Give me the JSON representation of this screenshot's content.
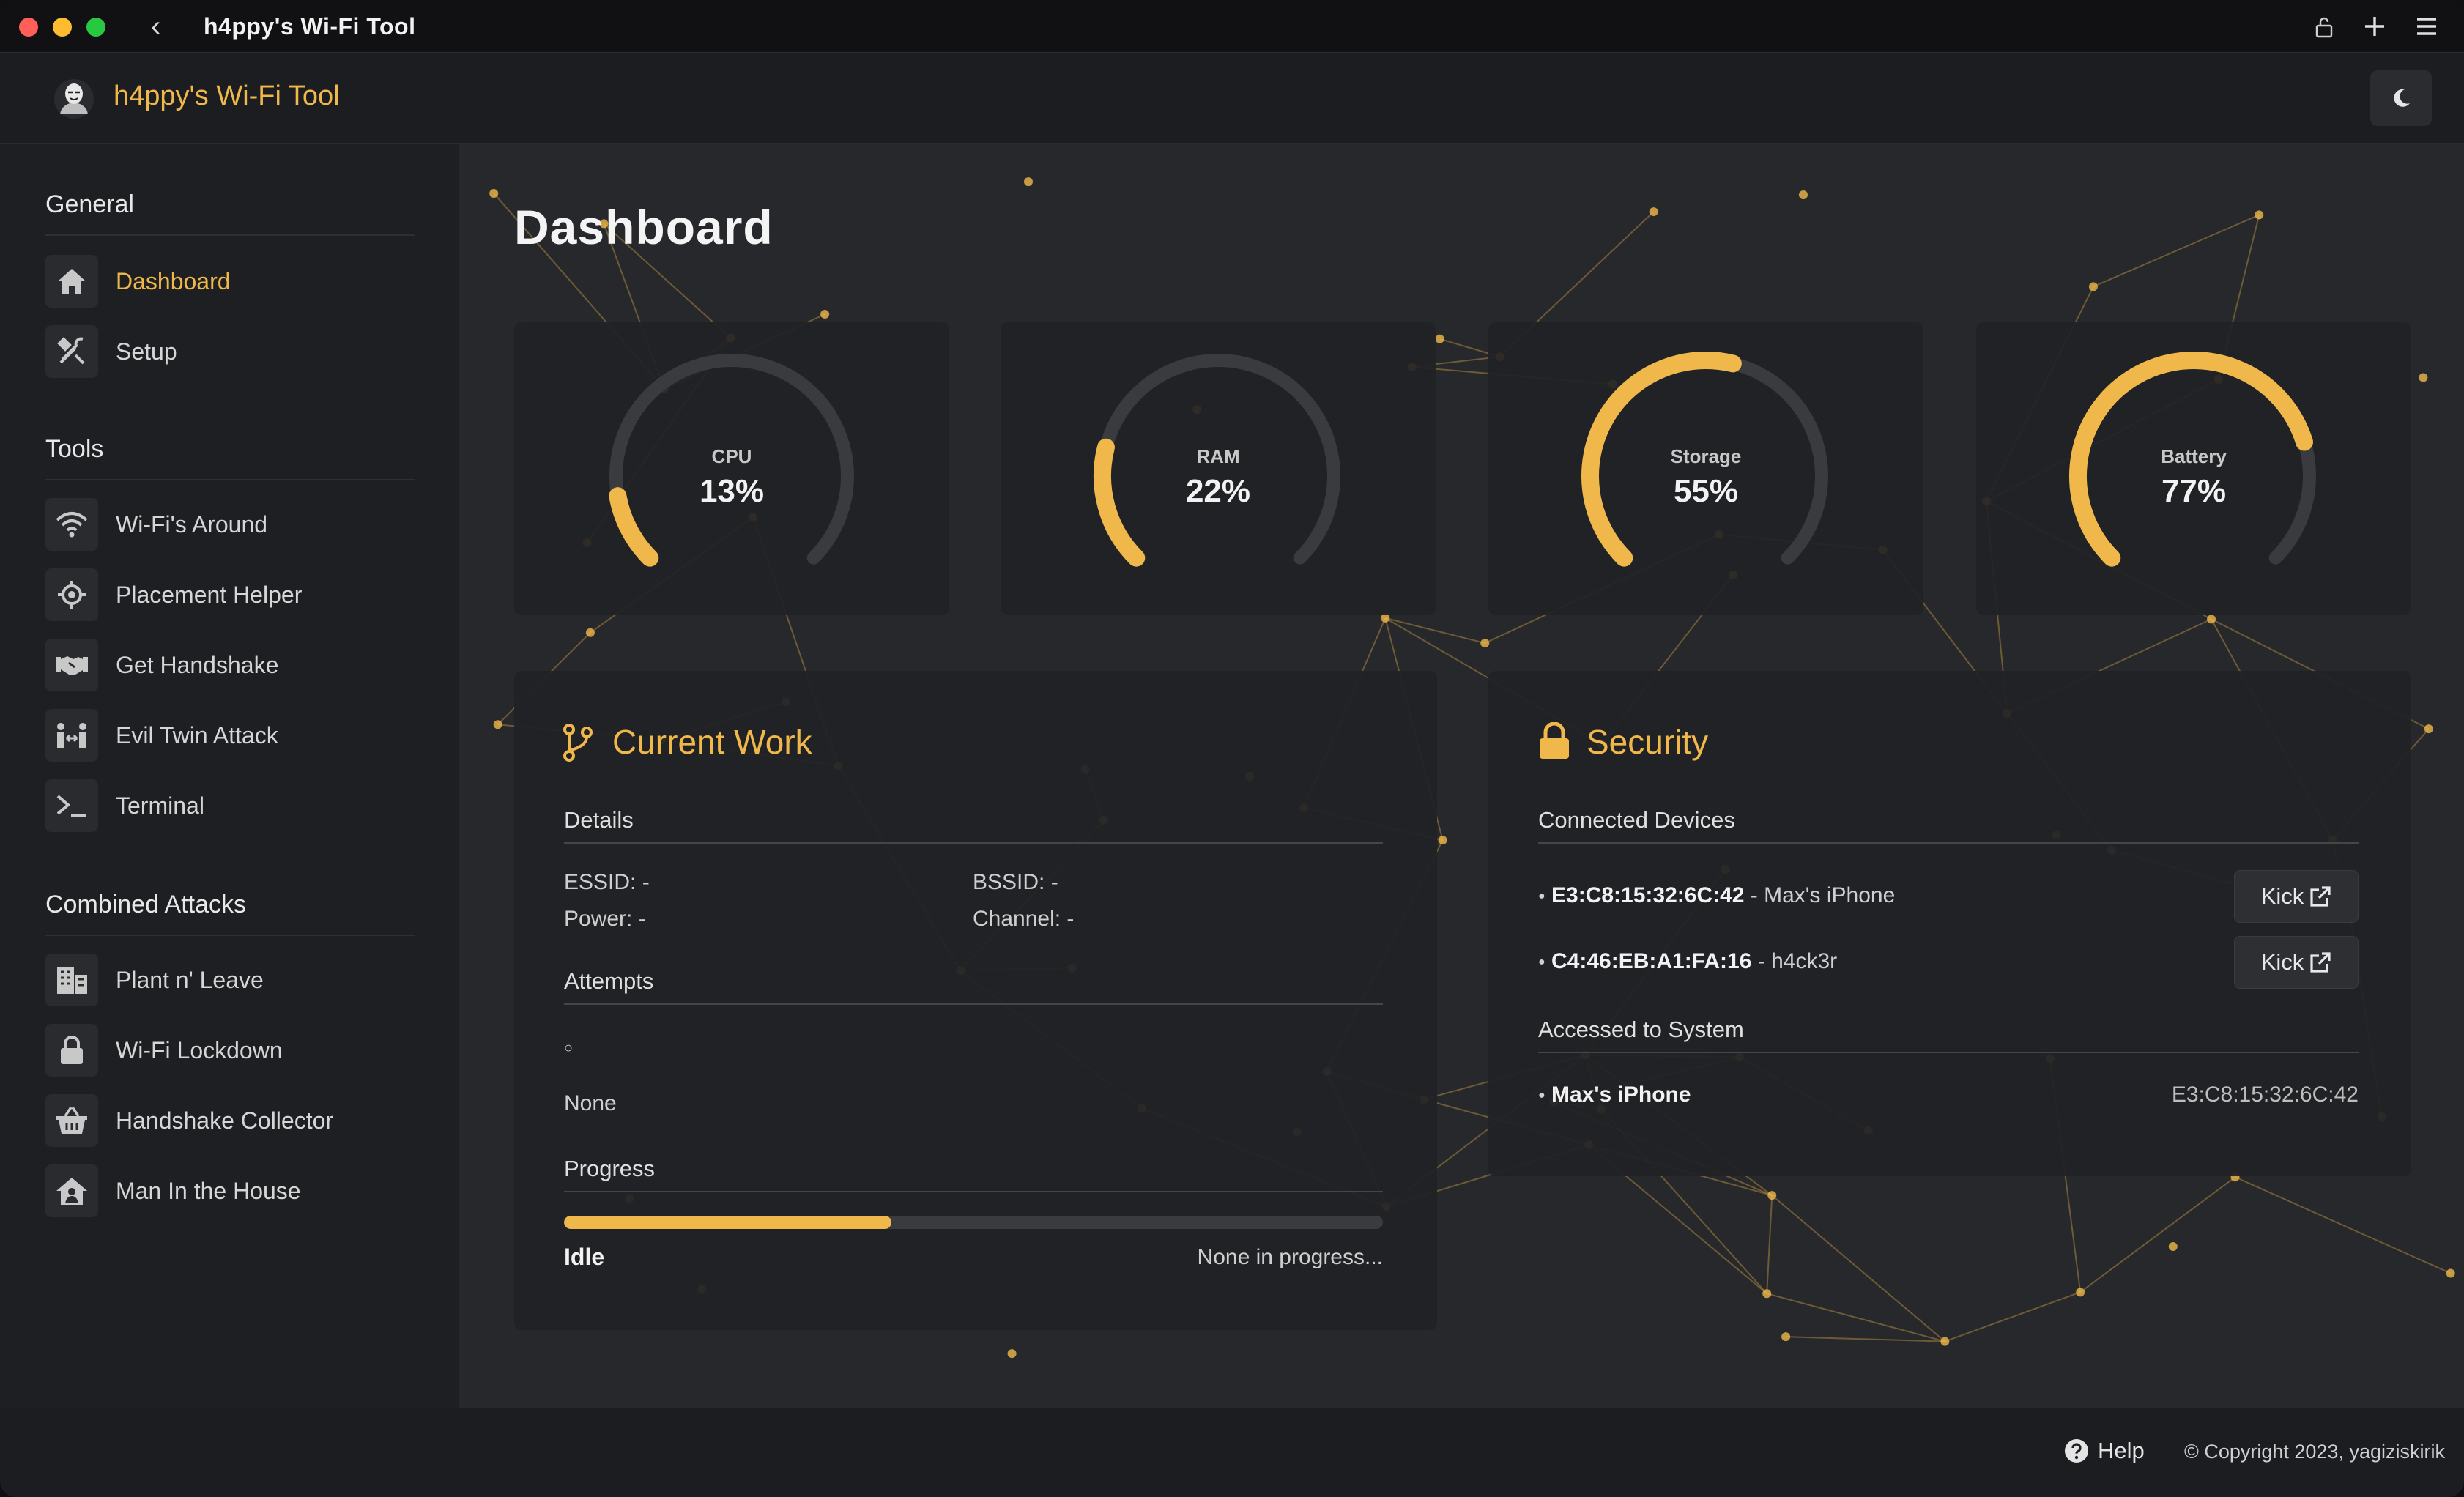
{
  "titlebar": {
    "back": "‹",
    "title": "h4ppy's Wi-Fi Tool"
  },
  "header": {
    "app_name": "h4ppy's Wi-Fi Tool"
  },
  "colors": {
    "accent": "#f0b84b",
    "track": "#3a3b3f"
  },
  "sidebar": {
    "general": {
      "title": "General",
      "items": [
        {
          "label": "Dashboard"
        },
        {
          "label": "Setup"
        }
      ]
    },
    "tools": {
      "title": "Tools",
      "items": [
        {
          "label": "Wi-Fi's Around"
        },
        {
          "label": "Placement Helper"
        },
        {
          "label": "Get Handshake"
        },
        {
          "label": "Evil Twin Attack"
        },
        {
          "label": "Terminal"
        }
      ]
    },
    "combined": {
      "title": "Combined Attacks",
      "items": [
        {
          "label": "Plant n' Leave"
        },
        {
          "label": "Wi-Fi Lockdown"
        },
        {
          "label": "Handshake Collector"
        },
        {
          "label": "Man In the House"
        }
      ]
    }
  },
  "main": {
    "title": "Dashboard"
  },
  "gauges": [
    {
      "label": "CPU",
      "value": "13%",
      "fraction": 0.13
    },
    {
      "label": "RAM",
      "value": "22%",
      "fraction": 0.22
    },
    {
      "label": "Storage",
      "value": "55%",
      "fraction": 0.55
    },
    {
      "label": "Battery",
      "value": "77%",
      "fraction": 0.77
    }
  ],
  "current_work": {
    "title": "Current Work",
    "details_title": "Details",
    "essid": "ESSID: -",
    "bssid": "BSSID: -",
    "power": "Power: -",
    "channel": "Channel: -",
    "attempts_title": "Attempts",
    "attempt_bullet": "○",
    "attempts_value": "None",
    "progress_title": "Progress",
    "progress_fraction": 0.4,
    "status": "Idle",
    "status_detail": "None in progress..."
  },
  "security": {
    "title": "Security",
    "connected_title": "Connected Devices",
    "devices": [
      {
        "mac": "E3:C8:15:32:6C:42",
        "name": " - Max's iPhone",
        "action": "Kick"
      },
      {
        "mac": "C4:46:EB:A1:FA:16",
        "name": " - h4ck3r",
        "action": "Kick"
      }
    ],
    "accessed_title": "Accessed to System",
    "accessed": [
      {
        "name": "Max's iPhone",
        "mac": "E3:C8:15:32:6C:42"
      }
    ]
  },
  "footer": {
    "help": "Help",
    "copyright": "© Copyright 2023, yagiziskirik"
  }
}
